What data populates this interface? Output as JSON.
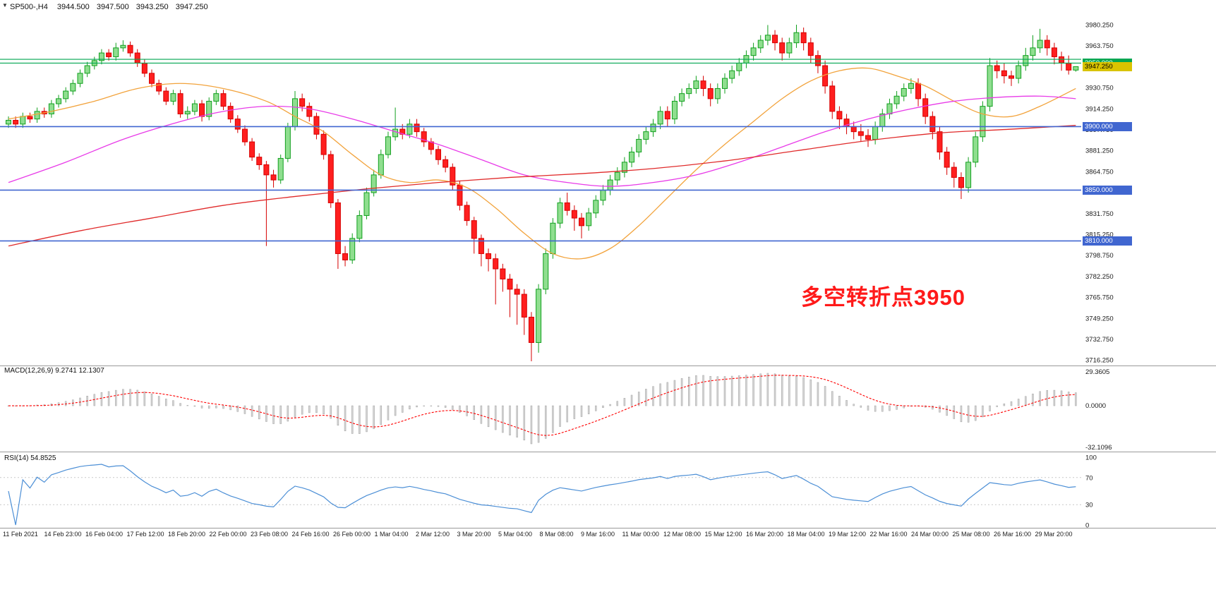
{
  "header": {
    "menu_icon": "▼",
    "symbol": "SP500-,H4",
    "open": "3944.500",
    "high": "3947.500",
    "low": "3943.250",
    "close": "3947.250"
  },
  "annotation": {
    "text": "多空转折点3950",
    "color": "#FF1A1A"
  },
  "colors": {
    "up_fill": "#8FDE8F",
    "up_stroke": "#12A01F",
    "down_fill": "#FF1F1F",
    "down_stroke": "#D60000",
    "level_green": "#00A651",
    "level_blue": "#4066D0",
    "price_tag_bg": "#D9C300",
    "price_tag_text": "#000000",
    "separator": "#9A9A9A"
  },
  "chart_data": {
    "type": "candlestick",
    "symbol": "SP500-",
    "timeframe": "H4",
    "current_bar": {
      "open": 3944.5,
      "high": 3947.5,
      "low": 3943.25,
      "close": 3947.25
    },
    "ylim": [
      3715.25,
      3980.25
    ],
    "y_axis_labels": [
      "3980.250",
      "3963.750",
      "3947.250",
      "3930.750",
      "3914.250",
      "3897.750",
      "3881.250",
      "3864.750",
      "3848.250",
      "3831.750",
      "3815.250",
      "3798.750",
      "3782.250",
      "3765.750",
      "3749.250",
      "3732.750",
      "3716.250"
    ],
    "time_axis_labels": [
      "11 Feb 2021",
      "14 Feb 23:00",
      "16 Feb 04:00",
      "17 Feb 12:00",
      "18 Feb 20:00",
      "22 Feb 00:00",
      "23 Feb 08:00",
      "24 Feb 16:00",
      "26 Feb 00:00",
      "1 Mar 04:00",
      "2 Mar 12:00",
      "3 Mar 20:00",
      "5 Mar 04:00",
      "8 Mar 08:00",
      "9 Mar 16:00",
      "11 Mar 00:00",
      "12 Mar 08:00",
      "15 Mar 12:00",
      "16 Mar 20:00",
      "18 Mar 04:00",
      "19 Mar 12:00",
      "22 Mar 16:00",
      "24 Mar 00:00",
      "25 Mar 08:00",
      "26 Mar 16:00",
      "29 Mar 20:00"
    ],
    "candles": [
      [
        3902,
        3908,
        3899,
        3905
      ],
      [
        3905,
        3908,
        3899,
        3902
      ],
      [
        3902,
        3911,
        3899,
        3908
      ],
      [
        3908,
        3911,
        3903,
        3906
      ],
      [
        3906,
        3915,
        3903,
        3912
      ],
      [
        3912,
        3915,
        3907,
        3910
      ],
      [
        3910,
        3921,
        3907,
        3918
      ],
      [
        3918,
        3925,
        3915,
        3922
      ],
      [
        3922,
        3931,
        3919,
        3928
      ],
      [
        3928,
        3937,
        3925,
        3934
      ],
      [
        3934,
        3945,
        3931,
        3942
      ],
      [
        3942,
        3951,
        3939,
        3948
      ],
      [
        3948,
        3955,
        3945,
        3952
      ],
      [
        3952,
        3961,
        3949,
        3958
      ],
      [
        3958,
        3961,
        3952,
        3955
      ],
      [
        3955,
        3966,
        3952,
        3962
      ],
      [
        3962,
        3968,
        3959,
        3964
      ],
      [
        3964,
        3967,
        3955,
        3958
      ],
      [
        3958,
        3961,
        3947,
        3950
      ],
      [
        3950,
        3953,
        3939,
        3942
      ],
      [
        3942,
        3945,
        3931,
        3934
      ],
      [
        3934,
        3937,
        3925,
        3928
      ],
      [
        3928,
        3931,
        3917,
        3920
      ],
      [
        3920,
        3929,
        3917,
        3926
      ],
      [
        3926,
        3929,
        3907,
        3910
      ],
      [
        3910,
        3916,
        3906,
        3912
      ],
      [
        3912,
        3921,
        3909,
        3918
      ],
      [
        3918,
        3921,
        3904,
        3908
      ],
      [
        3908,
        3923,
        3905,
        3920
      ],
      [
        3920,
        3929,
        3917,
        3926
      ],
      [
        3926,
        3929,
        3913,
        3916
      ],
      [
        3916,
        3919,
        3903,
        3906
      ],
      [
        3906,
        3909,
        3895,
        3898
      ],
      [
        3898,
        3901,
        3885,
        3888
      ],
      [
        3888,
        3891,
        3873,
        3876
      ],
      [
        3876,
        3879,
        3866,
        3870
      ],
      [
        3870,
        3873,
        3806,
        3862
      ],
      [
        3862,
        3866,
        3852,
        3858
      ],
      [
        3858,
        3878,
        3855,
        3875
      ],
      [
        3875,
        3903,
        3872,
        3900
      ],
      [
        3900,
        3928,
        3897,
        3922
      ],
      [
        3922,
        3926,
        3912,
        3916
      ],
      [
        3916,
        3919,
        3904,
        3908
      ],
      [
        3908,
        3911,
        3890,
        3894
      ],
      [
        3894,
        3897,
        3874,
        3878
      ],
      [
        3878,
        3881,
        3836,
        3840
      ],
      [
        3840,
        3843,
        3788,
        3800
      ],
      [
        3800,
        3806,
        3790,
        3795
      ],
      [
        3795,
        3816,
        3792,
        3812
      ],
      [
        3812,
        3834,
        3809,
        3830
      ],
      [
        3830,
        3852,
        3827,
        3848
      ],
      [
        3848,
        3866,
        3845,
        3862
      ],
      [
        3862,
        3882,
        3859,
        3878
      ],
      [
        3878,
        3896,
        3875,
        3892
      ],
      [
        3892,
        3915,
        3889,
        3898
      ],
      [
        3898,
        3902,
        3890,
        3894
      ],
      [
        3894,
        3906,
        3891,
        3902
      ],
      [
        3902,
        3906,
        3892,
        3896
      ],
      [
        3896,
        3899,
        3884,
        3888
      ],
      [
        3888,
        3891,
        3878,
        3882
      ],
      [
        3882,
        3885,
        3870,
        3874
      ],
      [
        3874,
        3877,
        3864,
        3868
      ],
      [
        3868,
        3871,
        3850,
        3854
      ],
      [
        3854,
        3857,
        3834,
        3838
      ],
      [
        3838,
        3841,
        3822,
        3826
      ],
      [
        3826,
        3829,
        3800,
        3812
      ],
      [
        3812,
        3815,
        3790,
        3800
      ],
      [
        3800,
        3804,
        3786,
        3796
      ],
      [
        3796,
        3800,
        3760,
        3788
      ],
      [
        3788,
        3792,
        3770,
        3780
      ],
      [
        3780,
        3784,
        3750,
        3772
      ],
      [
        3772,
        3776,
        3744,
        3768
      ],
      [
        3768,
        3772,
        3736,
        3750
      ],
      [
        3750,
        3754,
        3715.25,
        3730
      ],
      [
        3730,
        3776,
        3722,
        3772
      ],
      [
        3772,
        3804,
        3768,
        3800
      ],
      [
        3800,
        3828,
        3796,
        3824
      ],
      [
        3824,
        3844,
        3820,
        3840
      ],
      [
        3840,
        3848,
        3830,
        3834
      ],
      [
        3834,
        3838,
        3818,
        3828
      ],
      [
        3828,
        3832,
        3812,
        3822
      ],
      [
        3822,
        3836,
        3818,
        3832
      ],
      [
        3832,
        3846,
        3828,
        3842
      ],
      [
        3842,
        3854,
        3838,
        3850
      ],
      [
        3850,
        3862,
        3846,
        3858
      ],
      [
        3858,
        3868,
        3854,
        3864
      ],
      [
        3864,
        3876,
        3860,
        3872
      ],
      [
        3872,
        3884,
        3868,
        3880
      ],
      [
        3880,
        3894,
        3876,
        3890
      ],
      [
        3890,
        3900,
        3886,
        3896
      ],
      [
        3896,
        3906,
        3892,
        3902
      ],
      [
        3902,
        3916,
        3898,
        3912
      ],
      [
        3912,
        3916,
        3900,
        3906
      ],
      [
        3906,
        3924,
        3902,
        3920
      ],
      [
        3920,
        3930,
        3916,
        3926
      ],
      [
        3926,
        3934,
        3922,
        3930
      ],
      [
        3930,
        3940,
        3926,
        3936
      ],
      [
        3936,
        3940,
        3924,
        3930
      ],
      [
        3930,
        3934,
        3916,
        3922
      ],
      [
        3922,
        3934,
        3918,
        3930
      ],
      [
        3930,
        3942,
        3926,
        3938
      ],
      [
        3938,
        3948,
        3934,
        3944
      ],
      [
        3944,
        3954,
        3940,
        3950
      ],
      [
        3950,
        3960,
        3946,
        3956
      ],
      [
        3956,
        3966,
        3952,
        3962
      ],
      [
        3962,
        3972,
        3958,
        3968
      ],
      [
        3968,
        3980,
        3964,
        3972
      ],
      [
        3972,
        3976,
        3960,
        3966
      ],
      [
        3966,
        3970,
        3952,
        3958
      ],
      [
        3958,
        3970,
        3954,
        3966
      ],
      [
        3966,
        3980.25,
        3962,
        3974
      ],
      [
        3974,
        3978,
        3960,
        3966
      ],
      [
        3966,
        3970,
        3950,
        3956
      ],
      [
        3956,
        3960,
        3942,
        3948
      ],
      [
        3948,
        3952,
        3926,
        3932
      ],
      [
        3932,
        3936,
        3906,
        3912
      ],
      [
        3912,
        3916,
        3898,
        3906
      ],
      [
        3906,
        3910,
        3894,
        3900
      ],
      [
        3900,
        3904,
        3890,
        3896
      ],
      [
        3896,
        3902,
        3888,
        3893
      ],
      [
        3893,
        3898,
        3884,
        3890
      ],
      [
        3890,
        3904,
        3886,
        3900
      ],
      [
        3900,
        3914,
        3896,
        3910
      ],
      [
        3910,
        3922,
        3906,
        3918
      ],
      [
        3918,
        3928,
        3914,
        3924
      ],
      [
        3924,
        3934,
        3920,
        3930
      ],
      [
        3930,
        3938,
        3926,
        3934
      ],
      [
        3934,
        3938,
        3916,
        3922
      ],
      [
        3922,
        3926,
        3902,
        3908
      ],
      [
        3908,
        3912,
        3890,
        3896
      ],
      [
        3896,
        3900,
        3874,
        3880
      ],
      [
        3880,
        3884,
        3862,
        3868
      ],
      [
        3868,
        3872,
        3852,
        3860
      ],
      [
        3860,
        3864,
        3843,
        3852
      ],
      [
        3852,
        3876,
        3848,
        3872
      ],
      [
        3872,
        3896,
        3868,
        3892
      ],
      [
        3892,
        3920,
        3888,
        3916
      ],
      [
        3916,
        3954,
        3912,
        3948
      ],
      [
        3948,
        3952,
        3938,
        3944
      ],
      [
        3944,
        3950,
        3934,
        3940
      ],
      [
        3940,
        3944,
        3932,
        3938
      ],
      [
        3938,
        3952,
        3934,
        3948
      ],
      [
        3948,
        3962,
        3944,
        3956
      ],
      [
        3956,
        3972,
        3952,
        3962
      ],
      [
        3962,
        3977,
        3958,
        3968
      ],
      [
        3968,
        3972,
        3956,
        3962
      ],
      [
        3962,
        3966,
        3949,
        3955
      ],
      [
        3955,
        3959,
        3944,
        3950
      ],
      [
        3950,
        3956,
        3941,
        3944.5
      ],
      [
        3944.5,
        3947.5,
        3943.25,
        3947.25
      ]
    ],
    "moving_averages": [
      {
        "name": "ma-fast-orange",
        "color": "#F2A33C",
        "points": [
          [
            0,
            3906
          ],
          [
            6,
            3912
          ],
          [
            12,
            3920
          ],
          [
            18,
            3930
          ],
          [
            24,
            3934
          ],
          [
            30,
            3930
          ],
          [
            36,
            3920
          ],
          [
            40,
            3908
          ],
          [
            44,
            3896
          ],
          [
            48,
            3878
          ],
          [
            52,
            3862
          ],
          [
            56,
            3856
          ],
          [
            60,
            3858
          ],
          [
            64,
            3852
          ],
          [
            68,
            3836
          ],
          [
            72,
            3816
          ],
          [
            76,
            3800
          ],
          [
            80,
            3796
          ],
          [
            84,
            3804
          ],
          [
            88,
            3822
          ],
          [
            92,
            3844
          ],
          [
            96,
            3866
          ],
          [
            100,
            3886
          ],
          [
            104,
            3904
          ],
          [
            108,
            3922
          ],
          [
            112,
            3936
          ],
          [
            116,
            3944
          ],
          [
            120,
            3946
          ],
          [
            124,
            3940
          ],
          [
            128,
            3932
          ],
          [
            132,
            3920
          ],
          [
            136,
            3910
          ],
          [
            140,
            3908
          ],
          [
            144,
            3916
          ],
          [
            149,
            3930
          ]
        ]
      },
      {
        "name": "ma-medium-magenta",
        "color": "#E83BE8",
        "points": [
          [
            0,
            3856
          ],
          [
            8,
            3872
          ],
          [
            16,
            3890
          ],
          [
            24,
            3904
          ],
          [
            30,
            3912
          ],
          [
            36,
            3916
          ],
          [
            42,
            3914
          ],
          [
            48,
            3906
          ],
          [
            54,
            3896
          ],
          [
            60,
            3886
          ],
          [
            66,
            3874
          ],
          [
            72,
            3862
          ],
          [
            78,
            3856
          ],
          [
            84,
            3853
          ],
          [
            90,
            3856
          ],
          [
            96,
            3862
          ],
          [
            102,
            3872
          ],
          [
            108,
            3884
          ],
          [
            114,
            3896
          ],
          [
            120,
            3906
          ],
          [
            126,
            3914
          ],
          [
            132,
            3920
          ],
          [
            138,
            3923
          ],
          [
            144,
            3924
          ],
          [
            149,
            3922
          ]
        ]
      },
      {
        "name": "ma-slow-red",
        "color": "#E02A2A",
        "points": [
          [
            0,
            3806
          ],
          [
            10,
            3818
          ],
          [
            20,
            3828
          ],
          [
            30,
            3838
          ],
          [
            40,
            3845
          ],
          [
            50,
            3851
          ],
          [
            60,
            3856
          ],
          [
            70,
            3860
          ],
          [
            80,
            3863
          ],
          [
            90,
            3867
          ],
          [
            100,
            3873
          ],
          [
            110,
            3881
          ],
          [
            120,
            3889
          ],
          [
            130,
            3895
          ],
          [
            140,
            3898
          ],
          [
            149,
            3901
          ]
        ]
      }
    ],
    "horizontal_levels": [
      {
        "price": 3953.0,
        "color": "#00A651",
        "label": ""
      },
      {
        "price": 3950.0,
        "color": "#00A651",
        "label": "3950.000"
      },
      {
        "price": 3900.0,
        "color": "#4066D0",
        "label": "3900.000"
      },
      {
        "price": 3850.0,
        "color": "#4066D0",
        "label": "3850.000"
      },
      {
        "price": 3810.0,
        "color": "#4066D0",
        "label": "3810.000"
      }
    ],
    "last_price": {
      "value": 3947.25,
      "label": "3947.250"
    },
    "indicators": [
      {
        "type": "macd",
        "label": "MACD(12,26,9) 9.2741 12.1307",
        "fast": 12,
        "slow": 26,
        "signal": 9,
        "main_value": 9.2741,
        "signal_value": 12.1307,
        "axis_labels": {
          "top": "29.3605",
          "zero": "0.0000",
          "bottom": "-32.1096"
        },
        "histogram_color": "#D6D6D6",
        "histogram_stroke": "#A0A0A0",
        "signal_color": "#FF0000"
      },
      {
        "type": "rsi",
        "label": "RSI(14) 54.8525",
        "period": 14,
        "value": 54.8525,
        "levels": [
          70,
          30
        ],
        "axis_labels": [
          "100",
          "70",
          "30",
          "0"
        ],
        "line_color": "#4C8FD6"
      }
    ]
  }
}
